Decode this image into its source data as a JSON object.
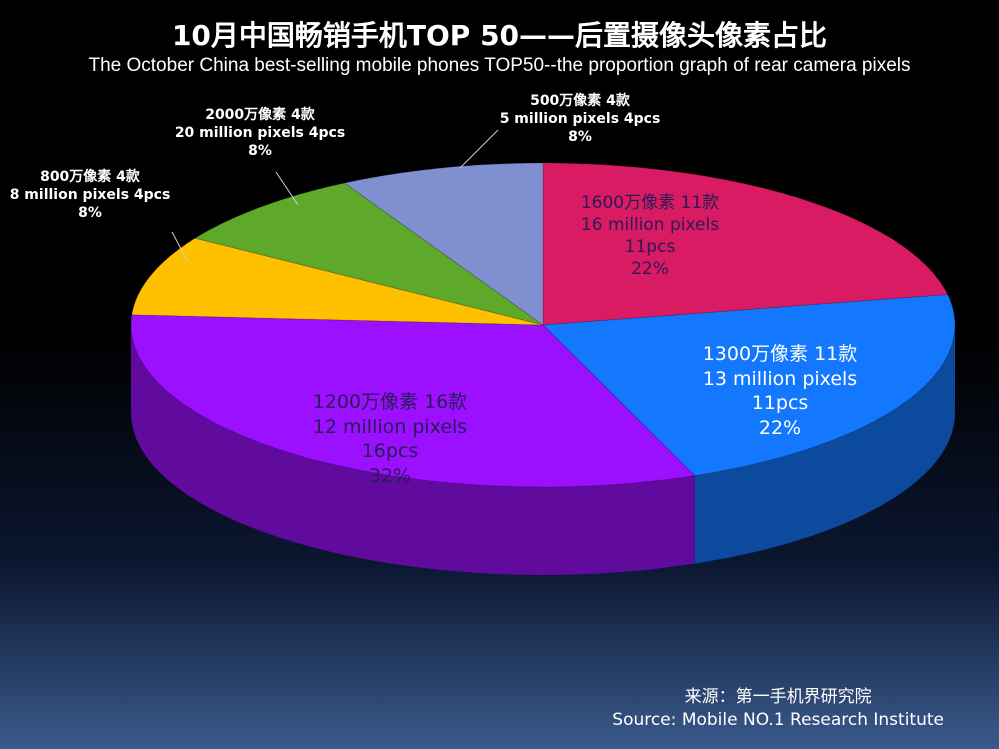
{
  "title": "10月中国畅销手机TOP 50——后置摄像头像素占比",
  "subtitle": "The October China best-selling mobile phones TOP50--the proportion graph of rear camera pixels",
  "chart_data": {
    "type": "pie",
    "slices": [
      {
        "label_cn": "1600万像素 11款",
        "label_en": "16 million pixels",
        "count": "11pcs",
        "percent": "22%",
        "value": 22,
        "color": "#d81b63"
      },
      {
        "label_cn": "1300万像素 11款",
        "label_en": "13 million pixels",
        "count": "11pcs",
        "percent": "22%",
        "value": 22,
        "color": "#1478ff"
      },
      {
        "label_cn": "1200万像素 16款",
        "label_en": "12 million pixels",
        "count": "16pcs",
        "percent": "32%",
        "value": 32,
        "color": "#9b10ff"
      },
      {
        "label_cn": "800万像素 4款",
        "label_en": "8 million pixels  4pcs",
        "count": "",
        "percent": "8%",
        "value": 8,
        "color": "#ffc000"
      },
      {
        "label_cn": "2000万像素 4款",
        "label_en": "20 million pixels  4pcs",
        "count": "",
        "percent": "8%",
        "value": 8,
        "color": "#5ea82a"
      },
      {
        "label_cn": "500万像素  4款",
        "label_en": "5 million pixels 4pcs",
        "count": "",
        "percent": "8%",
        "value": 8,
        "color": "#7f8fd0"
      }
    ]
  },
  "source": {
    "cn": "来源：第一手机界研究院",
    "en": "Source: Mobile NO.1 Research Institute"
  }
}
